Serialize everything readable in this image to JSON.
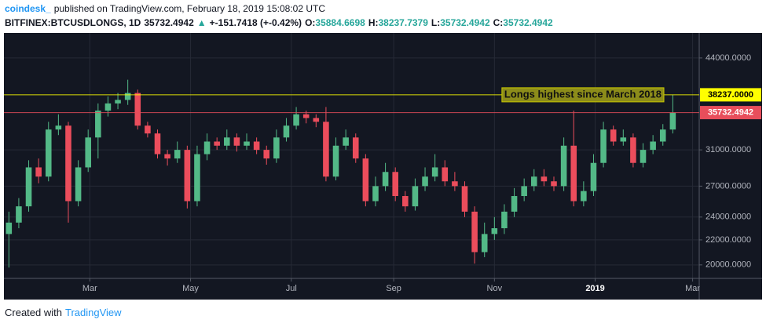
{
  "header": {
    "author": "coindesk_",
    "published": "published on TradingView.com, February 18, 2019 15:08:02 UTC"
  },
  "legend": {
    "symbol": "BITFINEX:BTCUSDLONGS, 1D",
    "last": "35732.4942",
    "arrow": "▲",
    "change": "+-151.7418 (+-0.42%)",
    "ohlc": [
      {
        "label": "O:",
        "value": "35884.6698"
      },
      {
        "label": "H:",
        "value": "38237.7379"
      },
      {
        "label": "L:",
        "value": "35732.4942"
      },
      {
        "label": "C:",
        "value": "35732.4942"
      }
    ]
  },
  "chart_data": {
    "type": "candlestick",
    "log_scale": true,
    "grid": true,
    "up_color": "#53b987",
    "down_color": "#eb4d5c",
    "x": [
      3,
      9,
      15,
      21,
      27,
      33,
      39,
      45,
      51,
      57,
      63,
      69,
      75,
      81,
      87,
      93,
      99,
      105,
      111,
      117,
      123,
      129,
      135,
      141,
      147,
      153,
      159,
      165,
      171,
      177,
      183,
      189,
      195,
      201,
      207,
      213,
      219,
      225,
      231,
      237,
      243,
      249,
      255,
      261,
      267,
      273,
      279,
      285,
      291,
      297,
      303,
      309,
      315,
      321,
      327,
      333,
      339,
      345,
      351,
      357,
      363,
      369,
      375,
      381,
      387,
      393,
      399,
      405
    ],
    "open": [
      22500,
      23500,
      25000,
      29000,
      28000,
      33500,
      34000,
      25500,
      29000,
      32500,
      36000,
      37000,
      37500,
      38500,
      34000,
      33000,
      30500,
      30000,
      31000,
      25500,
      30500,
      32000,
      31500,
      32500,
      31500,
      32000,
      31000,
      30000,
      32500,
      34000,
      35500,
      35000,
      34500,
      28000,
      31500,
      32500,
      30000,
      25500,
      27000,
      28500,
      26000,
      25000,
      27000,
      28000,
      29000,
      27500,
      27000,
      24500,
      21000,
      22500,
      23000,
      24500,
      26000,
      27000,
      28000,
      27500,
      27000,
      31500,
      25500,
      26500,
      29500,
      33500,
      32000,
      32500,
      29500,
      31000,
      32000,
      33500
    ],
    "high": [
      24500,
      25800,
      29800,
      30000,
      34500,
      35500,
      34500,
      29800,
      33500,
      37000,
      38000,
      38500,
      40500,
      39000,
      34500,
      33500,
      31000,
      32000,
      31500,
      31500,
      33000,
      32500,
      33500,
      33000,
      33000,
      32500,
      31500,
      33500,
      35000,
      36500,
      36000,
      35500,
      36500,
      32500,
      33500,
      33000,
      30500,
      28000,
      29500,
      29000,
      26500,
      27800,
      29000,
      30500,
      29800,
      28500,
      27500,
      25000,
      23500,
      24000,
      25200,
      26800,
      27800,
      28800,
      28800,
      28000,
      32500,
      36000,
      27500,
      30500,
      34500,
      34000,
      33500,
      33000,
      31800,
      32800,
      34200,
      38237.7379
    ],
    "low": [
      19800,
      23000,
      24500,
      27300,
      27500,
      32800,
      23500,
      25000,
      28500,
      30000,
      35200,
      36200,
      36800,
      33500,
      32500,
      30000,
      29200,
      29500,
      24800,
      25000,
      29800,
      31000,
      31000,
      30800,
      31000,
      30500,
      29300,
      29500,
      32000,
      33500,
      34300,
      33800,
      27500,
      27600,
      31000,
      29500,
      25000,
      25000,
      26500,
      25500,
      24500,
      24600,
      26500,
      27500,
      27000,
      26500,
      24000,
      20100,
      20600,
      22000,
      22500,
      24000,
      25500,
      26500,
      27000,
      26500,
      26500,
      25000,
      25000,
      26000,
      29000,
      31500,
      31500,
      29000,
      29000,
      30500,
      31500,
      33000
    ],
    "close": [
      23500,
      25000,
      29000,
      28000,
      33500,
      34000,
      25500,
      29000,
      32500,
      36000,
      37000,
      37500,
      38500,
      34000,
      33000,
      30500,
      30000,
      31000,
      25500,
      30500,
      32000,
      31500,
      32500,
      31500,
      32000,
      31000,
      30000,
      32500,
      34000,
      35500,
      35000,
      34500,
      28000,
      31500,
      32500,
      30000,
      25500,
      27000,
      28500,
      26000,
      25000,
      27000,
      28000,
      29000,
      27500,
      27000,
      24500,
      21000,
      22500,
      23000,
      24500,
      26000,
      27000,
      28000,
      27500,
      27000,
      31500,
      25500,
      26500,
      29500,
      33500,
      32000,
      32500,
      29500,
      31000,
      32000,
      33500,
      35732.4942
    ],
    "xlim": [
      0,
      421
    ],
    "xticks": [
      {
        "value": 52,
        "label": "Mar"
      },
      {
        "value": 113,
        "label": "May"
      },
      {
        "value": 174,
        "label": "Jul"
      },
      {
        "value": 236,
        "label": "Sep"
      },
      {
        "value": 297,
        "label": "Nov"
      },
      {
        "value": 358,
        "label": "2019"
      },
      {
        "value": 417,
        "label": "Mar"
      }
    ],
    "ylim": [
      19000,
      48400
    ],
    "yticks": [
      {
        "value": 20000,
        "label": "20000.0000"
      },
      {
        "value": 22000,
        "label": "22000.0000"
      },
      {
        "value": 24000,
        "label": "24000.0000"
      },
      {
        "value": 27000,
        "label": "27000.0000"
      },
      {
        "value": 31000,
        "label": "31000.0000"
      },
      {
        "value": 44000,
        "label": "44000.0000"
      }
    ],
    "hlines": [
      {
        "value": 38237,
        "label": "38237.0000",
        "color": "#ffff00",
        "text_color": "#000000"
      },
      {
        "value": 35732.4942,
        "label": "35732.4942",
        "color": "#e84e5b",
        "text_color": "#ffffff"
      }
    ],
    "annotation": "Longs highest since March 2018"
  },
  "footer": {
    "created": "Created with",
    "brand": "TradingView"
  }
}
